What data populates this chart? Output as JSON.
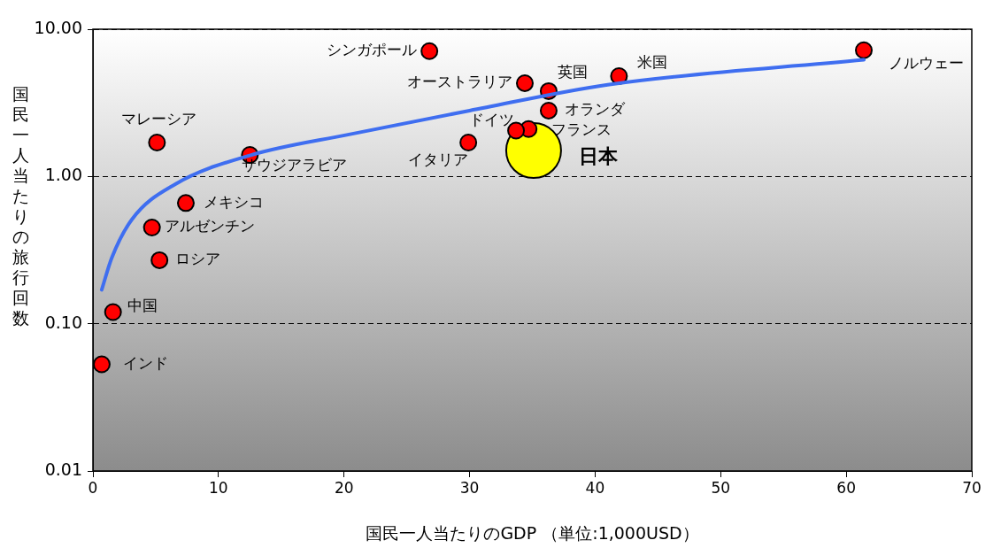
{
  "chart_data": {
    "type": "scatter",
    "xlabel": "国民一人当たりのGDP （単位:1,000USD）",
    "ylabel": "国民一人当たりの旅行回数",
    "xlim": [
      0,
      70
    ],
    "xticks": [
      0,
      10,
      20,
      30,
      40,
      50,
      60,
      70
    ],
    "ylim": [
      0.01,
      10
    ],
    "log": "y",
    "yticks": [
      {
        "value": 0.01,
        "label": "0.01"
      },
      {
        "value": 0.1,
        "label": "0.10"
      },
      {
        "value": 1,
        "label": "1.00"
      },
      {
        "value": 10,
        "label": "10.00"
      }
    ],
    "grid": "y",
    "marker": "circle",
    "series": [
      {
        "color": "#ff0000",
        "x": [
          26.8,
          34.4,
          36.3,
          41.9,
          61.4,
          36.3,
          34.7,
          33.7,
          29.9,
          5.1,
          12.5,
          7.4,
          4.7,
          5.3,
          1.6,
          0.7
        ],
        "values": [
          7.1,
          4.3,
          3.8,
          4.8,
          7.2,
          2.8,
          2.1,
          2.05,
          1.7,
          1.7,
          1.4,
          0.66,
          0.45,
          0.27,
          0.12,
          0.053
        ]
      },
      {
        "color": "#ffff00",
        "x": [
          35.1
        ],
        "values": [
          1.5
        ]
      },
      {
        "type": "line",
        "color": "#3f6ef0",
        "line_style": "solid",
        "marker": "none",
        "x": [
          0.7,
          1.5,
          3.1,
          6.6,
          12.5,
          20.4,
          30,
          41,
          61.4
        ],
        "values": [
          0.17,
          0.28,
          0.51,
          0.89,
          1.39,
          1.93,
          2.8,
          4.2,
          6.2
        ]
      }
    ],
    "annotations": [
      {
        "text": "シンガポール",
        "x": 26.8,
        "y": 7.1
      },
      {
        "text": "オーストラリア",
        "x": 34.4,
        "y": 4.3
      },
      {
        "text": "英国",
        "x": 36.3,
        "y": 3.8
      },
      {
        "text": "米国",
        "x": 41.9,
        "y": 4.8
      },
      {
        "text": "ノルウェー",
        "x": 61.4,
        "y": 7.2
      },
      {
        "text": "オランダ",
        "x": 36.3,
        "y": 2.8
      },
      {
        "text": "フランス",
        "x": 34.7,
        "y": 2.1
      },
      {
        "text": "ドイツ",
        "x": 33.7,
        "y": 2.05
      },
      {
        "text": "イタリア",
        "x": 29.9,
        "y": 1.7
      },
      {
        "text": "日本",
        "x": 35.1,
        "y": 1.5
      },
      {
        "text": "マレーシア",
        "x": 5.1,
        "y": 1.7
      },
      {
        "text": "サウジアラビア",
        "x": 12.5,
        "y": 1.4
      },
      {
        "text": "メキシコ",
        "x": 7.4,
        "y": 0.66
      },
      {
        "text": "アルゼンチン",
        "x": 4.7,
        "y": 0.45
      },
      {
        "text": "ロシア",
        "x": 5.3,
        "y": 0.27
      },
      {
        "text": "中国",
        "x": 1.6,
        "y": 0.12
      },
      {
        "text": "インド",
        "x": 0.7,
        "y": 0.053
      }
    ]
  }
}
